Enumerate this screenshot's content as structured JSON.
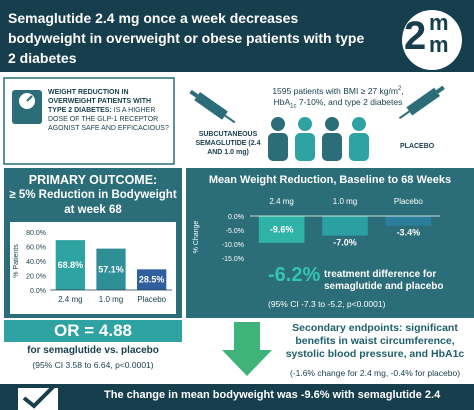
{
  "header": {
    "title": "Semaglutide 2.4 mg once a week decreases bodyweight in overweight or obese patients with type 2 diabetes",
    "logo": [
      "2",
      "m",
      "m"
    ]
  },
  "question": {
    "bold": "WEIGHT REDUCTION IN OVERWEIGHT PATIENTS WITH TYPE 2 DIABETES:",
    "text": "IS A HIGHER DOSE OF THE GLP-1 RECEPTOR AGONIST SAFE AND EFFICACIOUS?"
  },
  "population": [
    "1595 patients with BMI ≥ 27 kg/m",
    "2",
    ",",
    "HbA",
    "1c",
    " 7-10%, and type 2 diabetes"
  ],
  "arms": [
    "SUBCUTANEOUS SEMAGLUTIDE (2.4 AND 1.0 mg)",
    "PLACEBO"
  ],
  "primary": {
    "title": "PRIMARY OUTCOME:",
    "subtitle": "≥ 5% Reduction in Bodyweight at week 68",
    "chart": {
      "type": "bar",
      "y_label": "% Patients",
      "categories": [
        "2.4 mg",
        "1.0 mg",
        "Placebo"
      ],
      "values": [
        68.8,
        57.1,
        28.5
      ],
      "value_labels": [
        "68.8%",
        "57.1%",
        "28.5%"
      ],
      "colors": [
        "#2fa3a1",
        "#2f8f97",
        "#2f5f9f"
      ],
      "ylim": [
        0,
        80
      ],
      "yticks": [
        {
          "value": 0,
          "label": "0.0%"
        },
        {
          "value": 20,
          "label": "20.0%"
        },
        {
          "value": 40,
          "label": "40.0%"
        },
        {
          "value": 60,
          "label": "60.0%"
        },
        {
          "value": 80,
          "label": "80.0%"
        }
      ]
    },
    "odds_ratio": "OR = 4.88",
    "odds_text": "for semaglutide vs. placebo",
    "ci": "(95% CI 3.58 to 6.64, p<0.0001)"
  },
  "mean": {
    "title": "Mean Weight Reduction, Baseline to 68 Weeks",
    "chart": {
      "type": "bar",
      "y_label": "% Change",
      "categories": [
        "2.4 mg",
        "1.0 mg",
        "Placebo"
      ],
      "values": [
        -9.6,
        -7.0,
        -3.4
      ],
      "value_labels": [
        "-9.6%",
        "-7.0%",
        "-3.4%"
      ],
      "colors": [
        "#2fb3a8",
        "#2aa0a3",
        "#2c7f9c"
      ],
      "ylim": [
        -15,
        0
      ],
      "yticks": [
        {
          "value": 0,
          "label": "0.0%"
        },
        {
          "value": -5,
          "label": "-5.0%"
        },
        {
          "value": -10,
          "label": "-10.0%"
        },
        {
          "value": -15,
          "label": "-15.0%"
        }
      ]
    },
    "difference": "-6.2%",
    "difference_text": "treatment difference for semaglutide and placebo",
    "ci": "(95% CI -7.3 to -5.2, p<0.0001)"
  },
  "secondary": {
    "title": "Secondary endpoints: significant benefits in waist circumference, systolic blood pressure, and HbA1c",
    "detail": "(-1.6% change for 2.4 mg, -0.4% for placebo)"
  },
  "conclusion": "The change in mean bodyweight was -9.6% with semaglutide 2.4"
}
